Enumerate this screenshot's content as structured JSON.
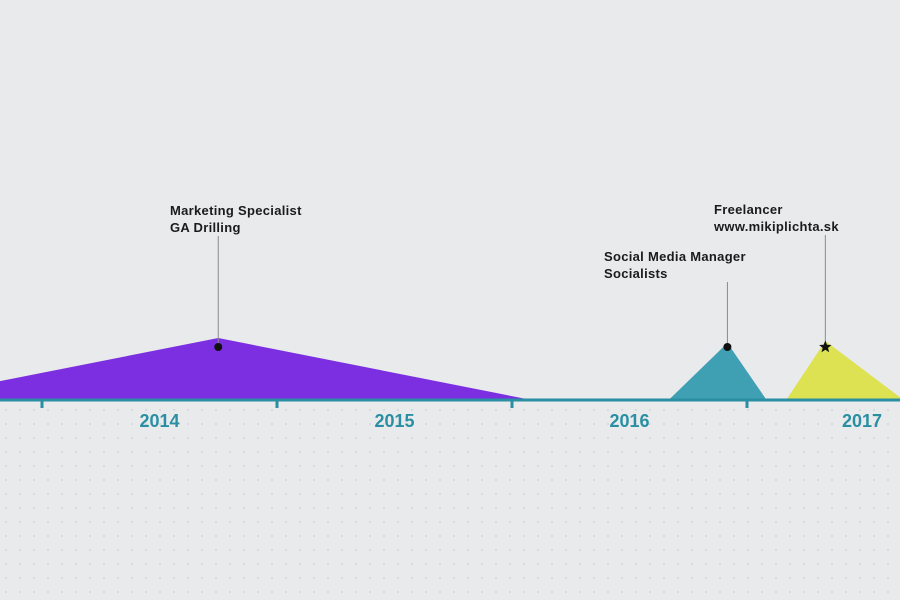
{
  "colors": {
    "background": "#e9eaec",
    "axis": "#2a8fa3",
    "dots": "#cdcfd3",
    "leader": "#8a8a8a"
  },
  "years": [
    {
      "label": "2014"
    },
    {
      "label": "2015"
    },
    {
      "label": "2016"
    },
    {
      "label": "2017"
    }
  ],
  "jobs": [
    {
      "title": "Marketing Specialist",
      "company": "GA Drilling",
      "color": "#7b2fe0",
      "marker": "dot-icon",
      "start": "2013-06",
      "peak": "2014-10",
      "end": "2016-02"
    },
    {
      "title": "Social Media Manager",
      "company": "Socialists",
      "color": "#3f9fb3",
      "marker": "dot-icon",
      "start": "2016-09",
      "peak": "2016-12",
      "end": "2017-02"
    },
    {
      "title": "Freelancer",
      "company": "www.mikiplichta.sk",
      "color": "#dde252",
      "marker": "star-icon",
      "start": "2017-03",
      "peak": "2017-05",
      "end": "2017-09"
    }
  ]
}
